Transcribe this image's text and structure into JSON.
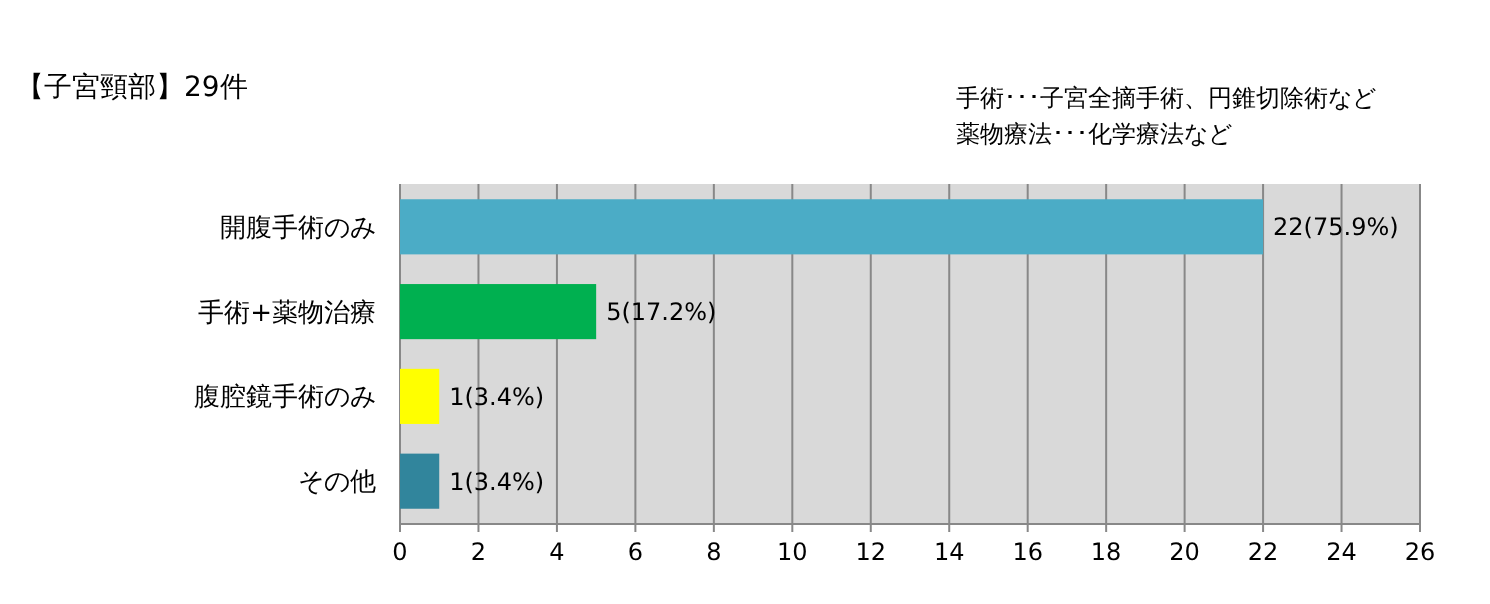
{
  "chart_data": {
    "type": "bar",
    "orientation": "horizontal",
    "title": "【子宮頸部】29件",
    "annotations": [
      "手術･･･子宮全摘手術、円錐切除術など",
      "薬物療法･･･化学療法など"
    ],
    "categories": [
      "開腹手術のみ",
      "手術+薬物治療",
      "腹腔鏡手術のみ",
      "その他"
    ],
    "values": [
      22,
      5,
      1,
      1
    ],
    "colors": [
      "#4bacc6",
      "#00b050",
      "#ffff00",
      "#31859c"
    ],
    "value_labels": [
      "22(75.9%)",
      "5(17.2%)",
      "1(3.4%)",
      "1(3.4%)"
    ],
    "xlim": [
      0,
      26
    ],
    "xticks": [
      0,
      2,
      4,
      6,
      8,
      10,
      12,
      14,
      16,
      18,
      20,
      22,
      24,
      26
    ],
    "grid": "x"
  }
}
